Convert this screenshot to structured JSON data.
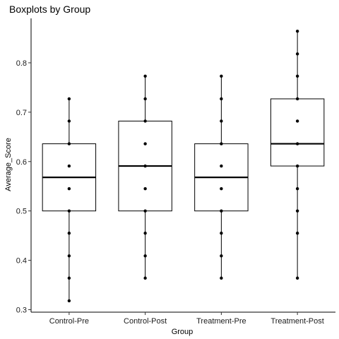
{
  "chart_data": {
    "type": "boxplot",
    "title": "Boxplots by Group",
    "xlabel": "Group",
    "ylabel": "Average_Score",
    "ylim": [
      0.295,
      0.89
    ],
    "yticks": [
      0.3,
      0.4,
      0.5,
      0.6,
      0.7,
      0.8
    ],
    "ytick_labels": [
      "0.3",
      "0.4",
      "0.5",
      "0.6",
      "0.7",
      "0.8"
    ],
    "grid": false,
    "categories": [
      "Control-Pre",
      "Control-Post",
      "Treatment-Pre",
      "Treatment-Post"
    ],
    "boxes": [
      {
        "whisker_low": 0.318,
        "q1": 0.5,
        "median": 0.568,
        "q3": 0.636,
        "whisker_high": 0.727
      },
      {
        "whisker_low": 0.364,
        "q1": 0.5,
        "median": 0.591,
        "q3": 0.682,
        "whisker_high": 0.773
      },
      {
        "whisker_low": 0.364,
        "q1": 0.5,
        "median": 0.568,
        "q3": 0.636,
        "whisker_high": 0.773
      },
      {
        "whisker_low": 0.364,
        "q1": 0.591,
        "median": 0.636,
        "q3": 0.727,
        "whisker_high": 0.864
      }
    ],
    "points": [
      [
        0.318,
        0.364,
        0.409,
        0.455,
        0.5,
        0.545,
        0.591,
        0.636,
        0.682,
        0.727
      ],
      [
        0.364,
        0.409,
        0.455,
        0.5,
        0.545,
        0.591,
        0.636,
        0.682,
        0.727,
        0.773
      ],
      [
        0.364,
        0.409,
        0.455,
        0.5,
        0.545,
        0.591,
        0.636,
        0.682,
        0.727,
        0.773
      ],
      [
        0.364,
        0.455,
        0.5,
        0.545,
        0.591,
        0.636,
        0.682,
        0.727,
        0.773,
        0.818,
        0.864
      ]
    ]
  }
}
